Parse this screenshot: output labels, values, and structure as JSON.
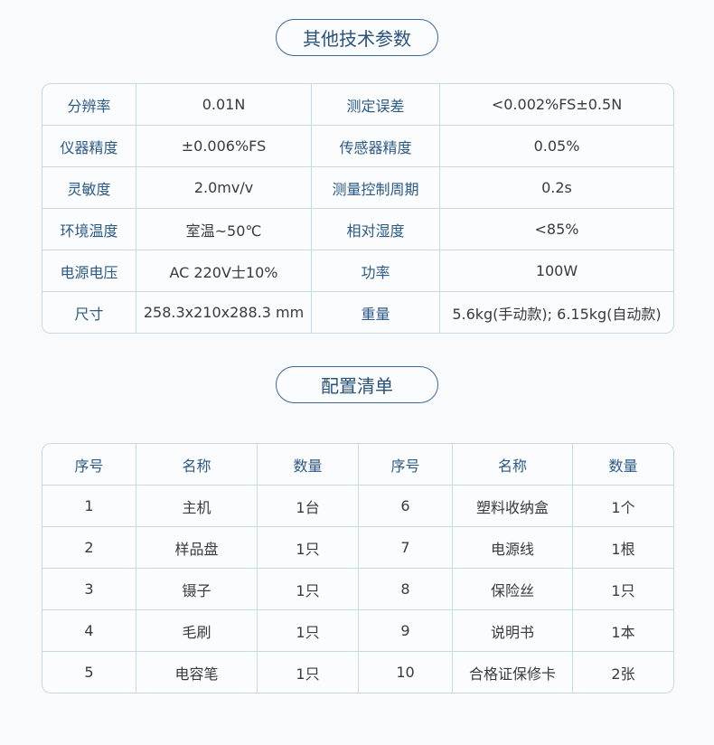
{
  "section1": {
    "title": "其他技术参数",
    "rows": [
      [
        "分辨率",
        "0.01N",
        "测定误差",
        "<0.002%FS±0.5N"
      ],
      [
        "仪器精度",
        "±0.006%FS",
        "传感器精度",
        "0.05%"
      ],
      [
        "灵敏度",
        "2.0mv/v",
        "测量控制周期",
        "0.2s"
      ],
      [
        "环境温度",
        "室温~50℃",
        "相对湿度",
        "<85%"
      ],
      [
        "电源电压",
        "AC 220V士10%",
        "功率",
        "100W"
      ],
      [
        "尺寸",
        "258.3x210x288.3 mm",
        "重量",
        "5.6kg(手动款); 6.15kg(自动款)"
      ]
    ]
  },
  "section2": {
    "title": "配置清单",
    "headers": [
      "序号",
      "名称",
      "数量",
      "序号",
      "名称",
      "数量"
    ],
    "rows": [
      [
        "1",
        "主机",
        "1台",
        "6",
        "塑料收纳盒",
        "1个"
      ],
      [
        "2",
        "样品盘",
        "1只",
        "7",
        "电源线",
        "1根"
      ],
      [
        "3",
        "镊子",
        "1只",
        "8",
        "保险丝",
        "1只"
      ],
      [
        "4",
        "毛刷",
        "1只",
        "9",
        "说明书",
        "1本"
      ],
      [
        "5",
        "电容笔",
        "1只",
        "10",
        "合格证保修卡",
        "2张"
      ]
    ]
  }
}
